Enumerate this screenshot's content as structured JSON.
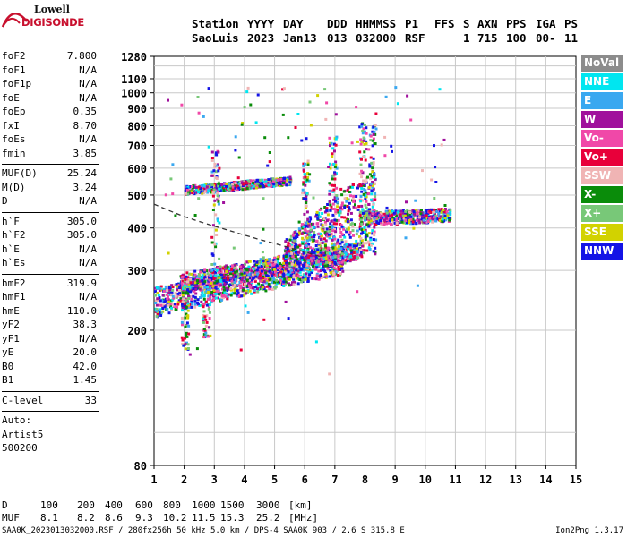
{
  "logo": {
    "line1": "Lowell",
    "line2": "DIGISONDE",
    "icon": "digisonde-logo"
  },
  "header": {
    "row1": [
      "Station",
      "YYYY",
      "DAY",
      "DDD",
      "HHMMSS",
      "P1",
      "FFS",
      "S",
      "AXN",
      "PPS",
      "IGA",
      "PS"
    ],
    "row2": [
      "SaoLuis",
      "2023",
      "Jan13",
      "013",
      "032000",
      "RSF",
      "",
      "1",
      "715",
      "100",
      "00-",
      "11"
    ]
  },
  "params": {
    "group1": [
      {
        "label": "foF2",
        "value": "7.800"
      },
      {
        "label": "foF1",
        "value": "N/A"
      },
      {
        "label": "foF1p",
        "value": "N/A"
      },
      {
        "label": "foE",
        "value": "N/A"
      },
      {
        "label": "foEp",
        "value": "0.35"
      },
      {
        "label": "fxI",
        "value": "8.70"
      },
      {
        "label": "foEs",
        "value": "N/A"
      },
      {
        "label": "fmin",
        "value": "3.85"
      }
    ],
    "group2": [
      {
        "label": "MUF(D)",
        "value": "25.24"
      },
      {
        "label": "M(D)",
        "value": "3.24"
      },
      {
        "label": "D",
        "value": "N/A"
      }
    ],
    "group3": [
      {
        "label": "h`F",
        "value": "305.0"
      },
      {
        "label": "h`F2",
        "value": "305.0"
      },
      {
        "label": "h`E",
        "value": "N/A"
      },
      {
        "label": "h`Es",
        "value": "N/A"
      }
    ],
    "group4": [
      {
        "label": "hmF2",
        "value": "319.9"
      },
      {
        "label": "hmF1",
        "value": "N/A"
      },
      {
        "label": "hmE",
        "value": "110.0"
      },
      {
        "label": "yF2",
        "value": "38.3"
      },
      {
        "label": "yF1",
        "value": "N/A"
      },
      {
        "label": "yE",
        "value": "20.0"
      },
      {
        "label": "B0",
        "value": "42.0"
      },
      {
        "label": "B1",
        "value": "1.45"
      }
    ],
    "clevel": {
      "label": "C-level",
      "value": "33"
    },
    "auto": [
      "Auto:",
      "Artist5",
      "500200"
    ]
  },
  "legend": [
    {
      "label": "NoVal",
      "color": "#8c8c8c"
    },
    {
      "label": "NNE",
      "color": "#00e6f0"
    },
    {
      "label": "E",
      "color": "#3aa8f0"
    },
    {
      "label": "W",
      "color": "#a0109c"
    },
    {
      "label": "Vo-",
      "color": "#f048a8"
    },
    {
      "label": "Vo+",
      "color": "#e8003a"
    },
    {
      "label": "SSW",
      "color": "#f0b4b4"
    },
    {
      "label": "X-",
      "color": "#0a8c0a"
    },
    {
      "label": "X+",
      "color": "#78c878"
    },
    {
      "label": "SSE",
      "color": "#d2d200"
    },
    {
      "label": "NNW",
      "color": "#1414e6"
    }
  ],
  "footer": {
    "d_label": "D",
    "d_values": [
      "100",
      "200",
      "400",
      "600",
      "800",
      "1000",
      "1500",
      "3000",
      "[km]"
    ],
    "muf_label": "MUF",
    "muf_values": [
      "8.1",
      "8.2",
      "8.6",
      "9.3",
      "10.2",
      "11.5",
      "15.3",
      "25.2",
      "[MHz]"
    ],
    "bottom_left": "SAA0K_2023013032000.RSF / 280fx256h 50 kHz 5.0 km / DPS-4 SAA0K 903 / 2.6 S 315.8 E",
    "bottom_right": "Ion2Png 1.3.17"
  },
  "chart_data": {
    "type": "scatter",
    "title": "",
    "xlabel": "",
    "ylabel": "",
    "xlim": [
      1,
      15
    ],
    "ylim": [
      80,
      1280
    ],
    "xticks": [
      1,
      2,
      3,
      4,
      5,
      6,
      7,
      8,
      9,
      10,
      11,
      12,
      13,
      14,
      15
    ],
    "yticks": [
      80,
      200,
      300,
      400,
      500,
      600,
      700,
      800,
      900,
      1000,
      1100,
      1280
    ],
    "y_scale": "log",
    "grid": true,
    "series": [
      {
        "name": "profile",
        "style": "dashed",
        "x": [
          1.0,
          1.5,
          2.0,
          2.5,
          3.0,
          3.5,
          4.0,
          4.5,
          5.0,
          5.5,
          6.0,
          6.5
        ],
        "y": [
          470,
          450,
          432,
          418,
          405,
          393,
          381,
          370,
          360,
          350,
          340,
          330
        ]
      }
    ],
    "traces": [
      {
        "kind": "band",
        "f_start": 1.0,
        "f_end": 7.3,
        "h_start": 245,
        "h_end": 320,
        "spread": 25
      },
      {
        "kind": "band",
        "f_start": 1.8,
        "f_end": 7.8,
        "h_start": 275,
        "h_end": 345,
        "spread": 20
      },
      {
        "kind": "spread",
        "f_start": 5.3,
        "f_end": 8.3,
        "h_start": 330,
        "h_end": 560
      },
      {
        "kind": "band",
        "f_start": 7.8,
        "f_end": 10.8,
        "h_start": 430,
        "h_end": 440,
        "spread": 20
      },
      {
        "kind": "band",
        "f_start": 2.0,
        "f_end": 5.5,
        "h_start": 520,
        "h_end": 555,
        "spread": 15
      },
      {
        "kind": "vertical",
        "f": 6.9,
        "h_start": 320,
        "h_end": 760
      },
      {
        "kind": "vertical",
        "f": 6.0,
        "h_start": 320,
        "h_end": 640
      },
      {
        "kind": "vertical",
        "f": 7.9,
        "h_start": 350,
        "h_end": 820
      },
      {
        "kind": "vertical",
        "f": 8.2,
        "h_start": 350,
        "h_end": 830
      },
      {
        "kind": "vertical",
        "f": 3.0,
        "h_start": 270,
        "h_end": 680
      },
      {
        "kind": "vertical",
        "f": 2.0,
        "h_start": 175,
        "h_end": 275
      },
      {
        "kind": "vertical",
        "f": 2.7,
        "h_start": 190,
        "h_end": 275
      }
    ]
  }
}
